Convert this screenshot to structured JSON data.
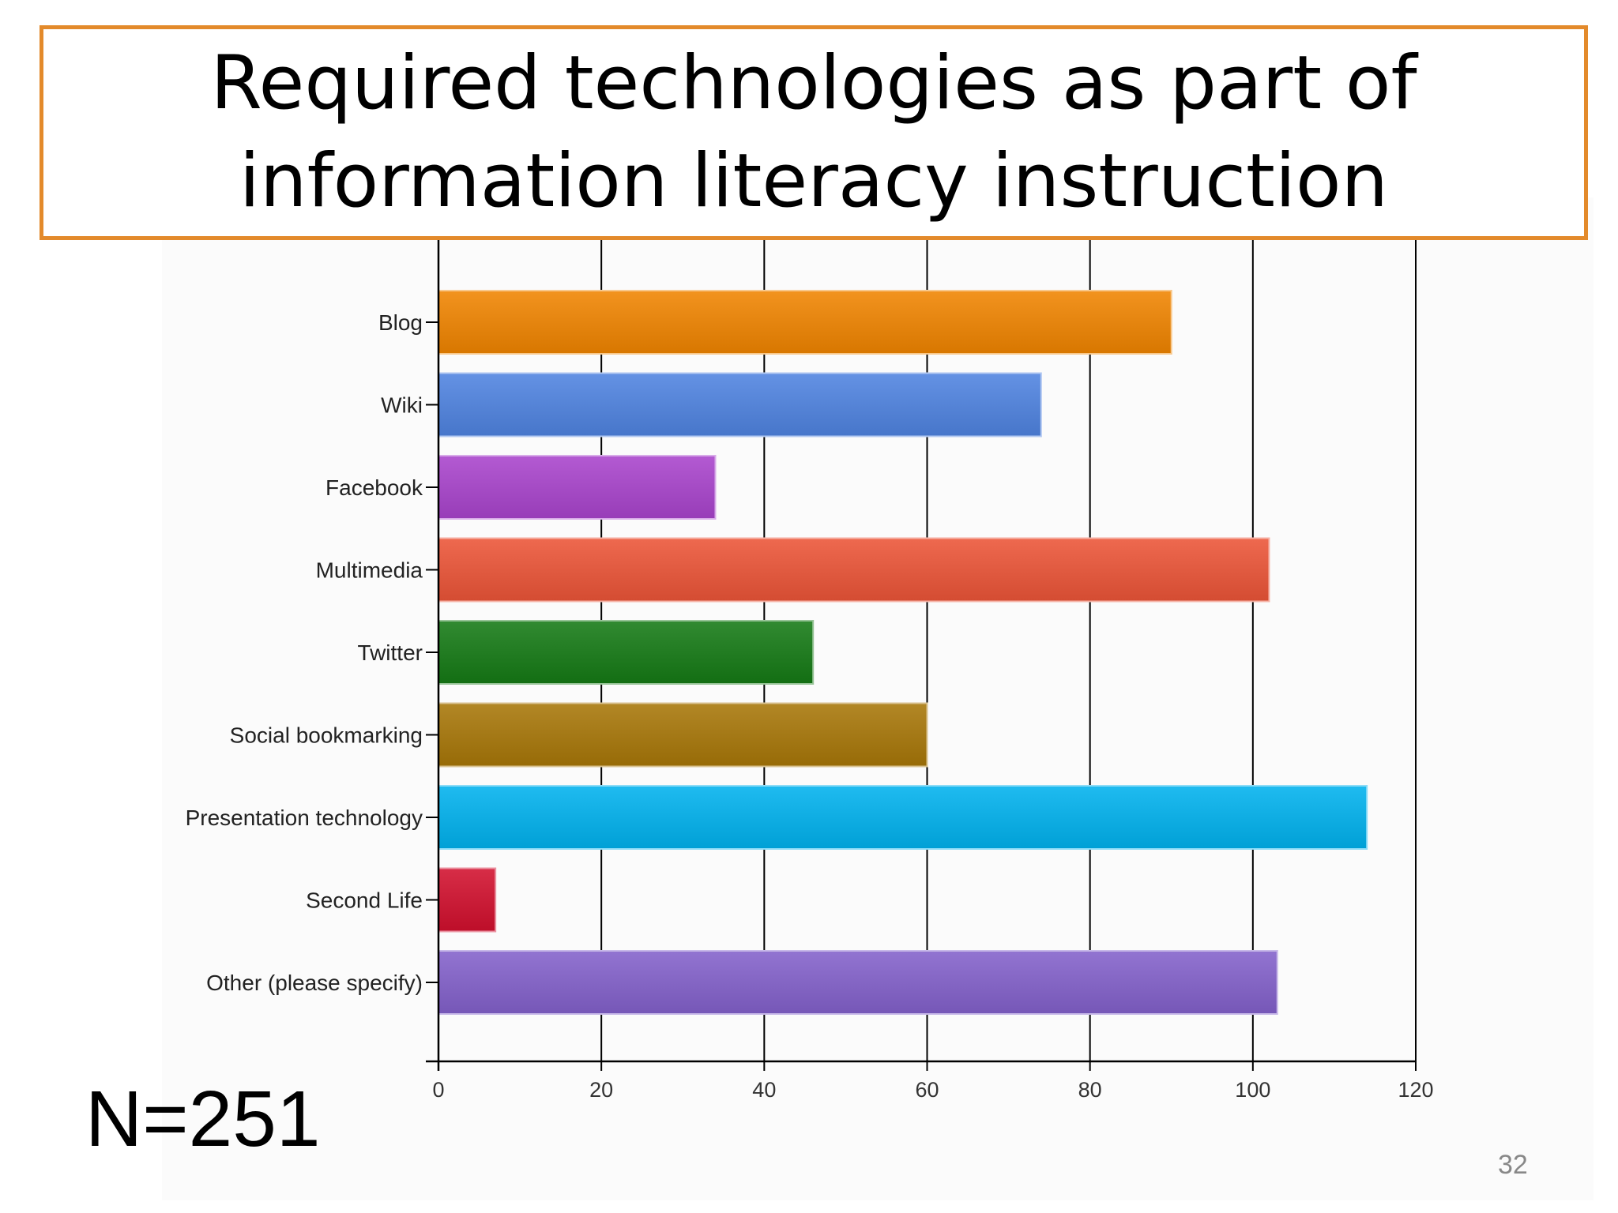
{
  "slide": {
    "title": "Required technologies as part of information literacy instruction",
    "sample_size": "N=251",
    "page_number": "32"
  },
  "chart_data": {
    "type": "bar",
    "orientation": "horizontal",
    "title": "Required technologies as part of information literacy instruction",
    "xlabel": "",
    "ylabel": "",
    "categories": [
      "Blog",
      "Wiki",
      "Facebook",
      "Multimedia",
      "Twitter",
      "Social bookmarking",
      "Presentation technology",
      "Second Life",
      "Other (please specify)"
    ],
    "values": [
      90,
      74,
      34,
      102,
      46,
      60,
      114,
      7,
      103
    ],
    "colors": [
      "#f08400",
      "#4f83e0",
      "#a944cc",
      "#ec5437",
      "#157a15",
      "#a87708",
      "#00b2ee",
      "#d2102e",
      "#8361cb"
    ],
    "xlim": [
      0,
      120
    ],
    "xticks": [
      0,
      20,
      40,
      60,
      80,
      100,
      120
    ],
    "grid": "vertical",
    "legend": "none"
  }
}
